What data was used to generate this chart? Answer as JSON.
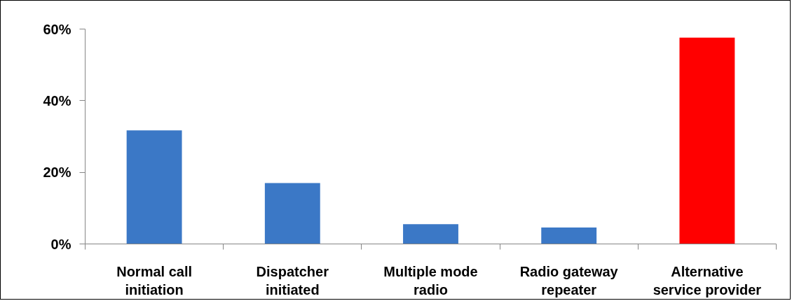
{
  "chart_data": {
    "type": "bar",
    "categories": [
      "Normal call initiation",
      "Dispatcher initiated",
      "Multiple mode radio",
      "Radio gateway repeater",
      "Alternative service provider"
    ],
    "values": [
      31.7,
      17.0,
      5.5,
      4.6,
      57.6
    ],
    "colors": [
      "#3b78c6",
      "#3b78c6",
      "#3b78c6",
      "#3b78c6",
      "#ff0000"
    ],
    "ylim": [
      0,
      60
    ],
    "yticks": [
      {
        "value": 0,
        "label": "0%"
      },
      {
        "value": 20,
        "label": "20%"
      },
      {
        "value": 40,
        "label": "40%"
      },
      {
        "value": 60,
        "label": "60%"
      }
    ],
    "grid": false
  }
}
